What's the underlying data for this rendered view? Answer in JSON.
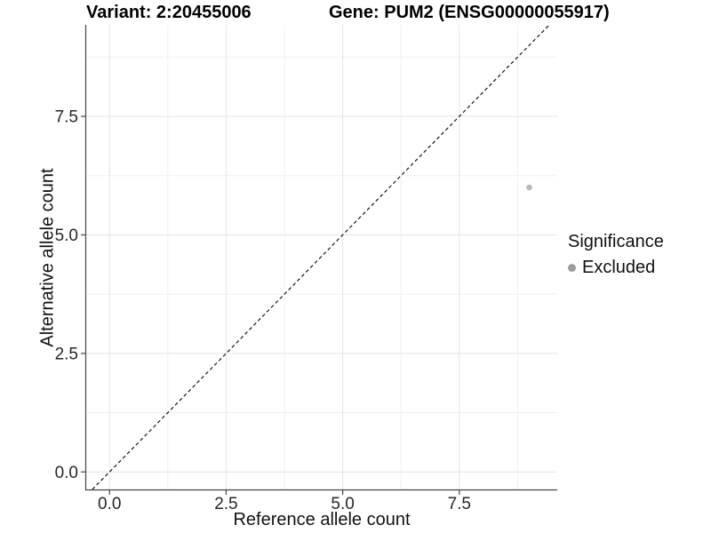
{
  "figure": {
    "background": "#ffffff"
  },
  "chart_data": {
    "type": "scatter",
    "title_left": "Variant: 2:20455006",
    "title_right": "Gene: PUM2 (ENSG00000055917)",
    "xlabel": "Reference allele count",
    "ylabel": "Alternative allele count",
    "xlim": [
      -0.5,
      9.6
    ],
    "ylim": [
      -0.37,
      9.43
    ],
    "x_ticks": [
      0,
      2.5,
      5,
      7.5
    ],
    "y_ticks": [
      0,
      2.5,
      5,
      7.5
    ],
    "x_minor_ticks": [
      1.25,
      3.75,
      6.25,
      8.75
    ],
    "y_minor_ticks": [
      1.25,
      3.75,
      6.25,
      8.75
    ],
    "grid": "on",
    "legend_position": "right",
    "points": [
      {
        "x": 9,
        "y": 6,
        "series": "Excluded",
        "color": "#b9b9b9",
        "radius": 3.3
      }
    ],
    "identity_line": {
      "slope": 1,
      "intercept": 0,
      "style": "dashed",
      "color": "#161616"
    },
    "legend": {
      "title": "Significance",
      "entries": [
        {
          "label": "Excluded",
          "color": "#9e9e9e"
        }
      ]
    },
    "colors": {
      "grid_major": "#e4e4e4",
      "grid_minor": "#f0f0f0",
      "axis_line": "#444444",
      "tick_text": "#262626"
    }
  }
}
